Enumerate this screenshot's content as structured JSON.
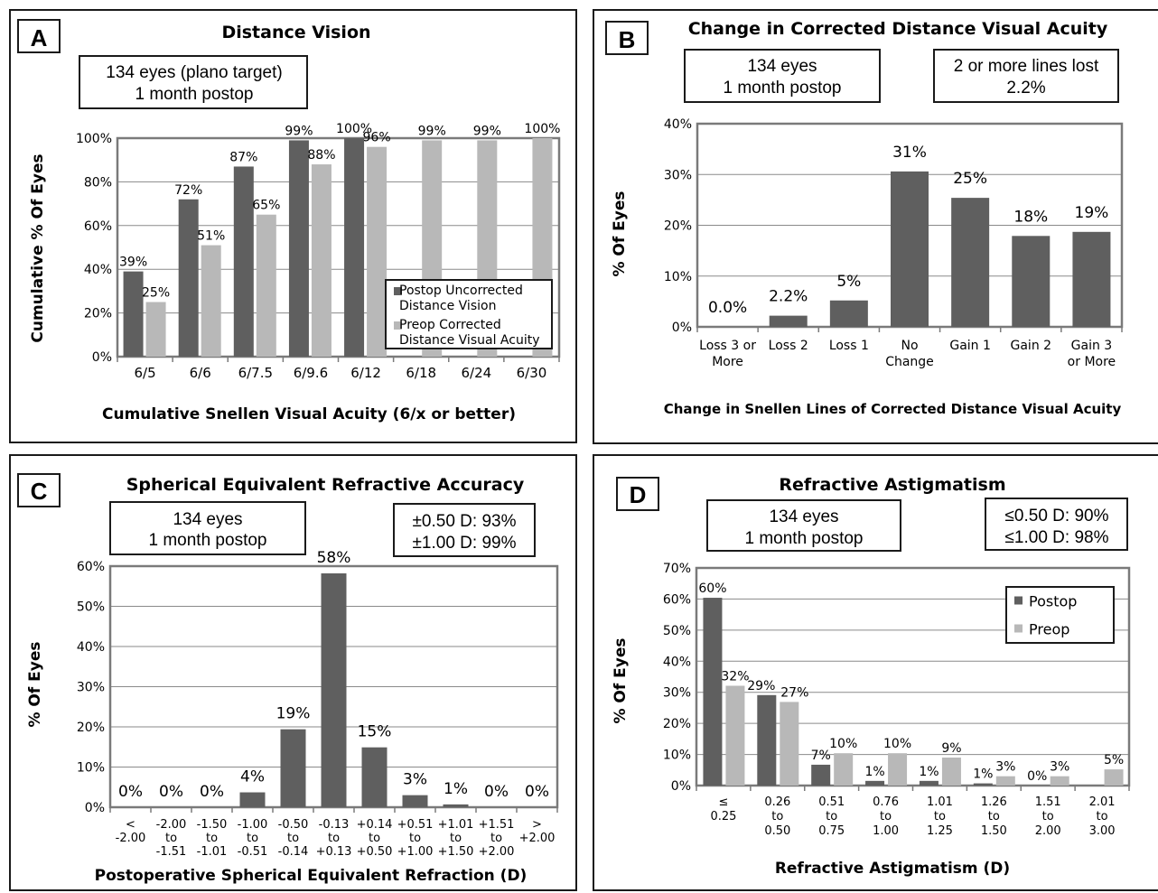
{
  "panels": {
    "A": {
      "letter": "A",
      "info_lines": [
        "134 eyes (plano target)",
        "1 month postop"
      ]
    },
    "B": {
      "letter": "B",
      "info_lines": [
        "134 eyes",
        "1 month postop"
      ],
      "info2_lines": [
        "2 or more lines lost",
        "2.2%"
      ]
    },
    "C": {
      "letter": "C",
      "info_lines": [
        "134 eyes",
        "1 month postop"
      ],
      "info2_lines": [
        "±0.50 D: 93%",
        "±1.00 D: 99%"
      ]
    },
    "D": {
      "letter": "D",
      "info_lines": [
        "134 eyes",
        "1 month postop"
      ],
      "info2_lines": [
        "≤0.50 D: 90%",
        "≤1.00 D: 98%"
      ]
    }
  },
  "colors": {
    "postop": "#5f5f5f",
    "preop": "#b8b8b8",
    "grid": "#8a8a8a",
    "frame": "#1a1a1a"
  },
  "chart_data": [
    {
      "id": "A",
      "type": "bar",
      "title": "Distance Vision",
      "xlabel": "Cumulative Snellen Visual Acuity (6/x or better)",
      "ylabel": "Cumulative % Of Eyes",
      "ylim": [
        0,
        100
      ],
      "yticks": [
        "0%",
        "20%",
        "40%",
        "60%",
        "80%",
        "100%"
      ],
      "grid": true,
      "legend": "bottom-right",
      "categories": [
        "6/5",
        "6/6",
        "6/7.5",
        "6/9.6",
        "6/12",
        "6/18",
        "6/24",
        "6/30"
      ],
      "series": [
        {
          "name": "Postop Uncorrected Distance Vision",
          "legend_lines": [
            "Postop Uncorrected",
            "Distance Vision"
          ],
          "color": "#5f5f5f",
          "values": [
            39,
            72,
            87,
            99,
            100,
            null,
            null,
            null
          ],
          "labels": [
            "39%",
            "72%",
            "87%",
            "99%",
            "100%",
            "",
            "",
            ""
          ]
        },
        {
          "name": "Preop Corrected Distance Visual Acuity",
          "legend_lines": [
            "Preop Corrected",
            "Distance Visual Acuity"
          ],
          "color": "#b8b8b8",
          "values": [
            25,
            51,
            65,
            88,
            96,
            99,
            99,
            100
          ],
          "labels": [
            "25%",
            "51%",
            "65%",
            "88%",
            "96%",
            "99%",
            "99%",
            "100%"
          ]
        }
      ]
    },
    {
      "id": "B",
      "type": "bar",
      "title": "Change in Corrected Distance Visual Acuity",
      "xlabel": "Change in Snellen Lines of Corrected Distance Visual Acuity",
      "ylabel": "% Of Eyes",
      "ylim": [
        0,
        40
      ],
      "yticks": [
        "0%",
        "10%",
        "20%",
        "30%",
        "40%"
      ],
      "grid": true,
      "categories": [
        [
          "Loss 3 or",
          "More"
        ],
        [
          "Loss 2"
        ],
        [
          "Loss 1"
        ],
        [
          "No",
          "Change"
        ],
        [
          "Gain 1"
        ],
        [
          "Gain 2"
        ],
        [
          "Gain 3",
          "or More"
        ]
      ],
      "series": [
        {
          "name": "",
          "color": "#5f5f5f",
          "values": [
            0.0,
            2.2,
            5.2,
            30.6,
            25.4,
            17.9,
            18.7
          ],
          "labels": [
            "0.0%",
            "2.2%",
            "5%",
            "31%",
            "25%",
            "18%",
            "19%"
          ]
        }
      ]
    },
    {
      "id": "C",
      "type": "bar",
      "title": "Spherical Equivalent Refractive Accuracy",
      "xlabel": "Postoperative Spherical Equivalent Refraction (D)",
      "ylabel": "% Of Eyes",
      "ylim": [
        0,
        60
      ],
      "yticks": [
        "0%",
        "10%",
        "20%",
        "30%",
        "40%",
        "50%",
        "60%"
      ],
      "grid": true,
      "categories": [
        [
          "<",
          "-2.00"
        ],
        [
          "-2.00",
          "to",
          "-1.51"
        ],
        [
          "-1.50",
          "to",
          "-1.01"
        ],
        [
          "-1.00",
          "to",
          "-0.51"
        ],
        [
          "-0.50",
          "to",
          "-0.14"
        ],
        [
          "-0.13",
          "to",
          "+0.13"
        ],
        [
          "+0.14",
          "to",
          "+0.50"
        ],
        [
          "+0.51",
          "to",
          "+1.00"
        ],
        [
          "+1.01",
          "to",
          "+1.50"
        ],
        [
          "+1.51",
          "to",
          "+2.00"
        ],
        [
          ">",
          "+2.00"
        ]
      ],
      "series": [
        {
          "name": "",
          "color": "#5f5f5f",
          "values": [
            0,
            0,
            0,
            3.7,
            19.4,
            58.2,
            14.9,
            3.0,
            0.7,
            0,
            0
          ],
          "labels": [
            "0%",
            "0%",
            "0%",
            "4%",
            "19%",
            "58%",
            "15%",
            "3%",
            "1%",
            "0%",
            "0%"
          ]
        }
      ]
    },
    {
      "id": "D",
      "type": "bar",
      "title": "Refractive Astigmatism",
      "xlabel": "Refractive Astigmatism (D)",
      "ylabel": "% Of Eyes",
      "ylim": [
        0,
        70
      ],
      "yticks": [
        "0%",
        "10%",
        "20%",
        "30%",
        "40%",
        "50%",
        "60%",
        "70%"
      ],
      "grid": true,
      "legend": "top-right",
      "categories": [
        [
          "≤",
          "0.25"
        ],
        [
          "0.26",
          "to",
          "0.50"
        ],
        [
          "0.51",
          "to",
          "0.75"
        ],
        [
          "0.76",
          "to",
          "1.00"
        ],
        [
          "1.01",
          "to",
          "1.25"
        ],
        [
          "1.26",
          "to",
          "1.50"
        ],
        [
          "1.51",
          "to",
          "2.00"
        ],
        [
          "2.01",
          "to",
          "3.00"
        ]
      ],
      "series": [
        {
          "name": "Postop",
          "legend_lines": [
            "Postop"
          ],
          "color": "#5f5f5f",
          "values": [
            60.4,
            29.1,
            6.7,
            1.5,
            1.5,
            0.7,
            0,
            0
          ],
          "labels": [
            "60%",
            "29%",
            "7%",
            "1%",
            "1%",
            "1%",
            "0%",
            ""
          ]
        },
        {
          "name": "Preop",
          "legend_lines": [
            "Preop"
          ],
          "color": "#b8b8b8",
          "values": [
            32.1,
            26.9,
            10.4,
            10.4,
            9.0,
            3.0,
            3.0,
            5.2
          ],
          "labels": [
            "32%",
            "27%",
            "10%",
            "10%",
            "9%",
            "3%",
            "3%",
            "5%"
          ]
        }
      ]
    }
  ]
}
